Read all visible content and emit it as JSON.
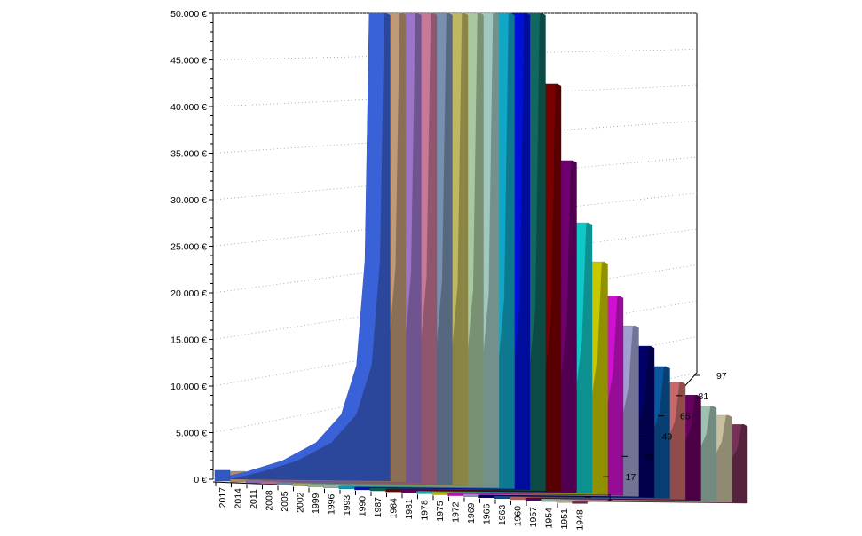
{
  "chart_data": {
    "type": "area",
    "title": "",
    "xlabel": "",
    "ylabel": "",
    "zlabel": "",
    "ylim": [
      0,
      50000
    ],
    "y_ticks": [
      "0 €",
      "5.000 €",
      "10.000 €",
      "15.000 €",
      "20.000 €",
      "25.000 €",
      "30.000 €",
      "35.000 €",
      "40.000 €",
      "45.000 €",
      "50.000 €"
    ],
    "depth_ticks": [
      "1",
      "17",
      "33",
      "49",
      "65",
      "81",
      "97"
    ],
    "x_ticks": [
      "2017",
      "2014",
      "2011",
      "2008",
      "2005",
      "2002",
      "1999",
      "1996",
      "1993",
      "1990",
      "1987",
      "1984",
      "1981",
      "1978",
      "1975",
      "1972",
      "1969",
      "1966",
      "1963",
      "1960",
      "1957",
      "1954",
      "1951",
      "1948"
    ],
    "grid": true,
    "legend": "none",
    "series": [
      {
        "start": "2017",
        "color": "#3a62d8",
        "values": [
          0,
          500,
          1500,
          3200,
          6000,
          11000,
          22000,
          50000,
          50000
        ]
      },
      {
        "start": "2014",
        "color": "#c09a78",
        "values": [
          0,
          480,
          1450,
          3100,
          5800,
          10800,
          21500,
          50000,
          50000
        ]
      },
      {
        "start": "2011",
        "color": "#9c74c8",
        "values": [
          0,
          470,
          1420,
          3050,
          5700,
          10600,
          21000,
          50000,
          50000
        ]
      },
      {
        "start": "2008",
        "color": "#c87898",
        "values": [
          0,
          460,
          1400,
          3000,
          5600,
          10400,
          20800,
          50000,
          50000
        ]
      },
      {
        "start": "2005",
        "color": "#7890b0",
        "values": [
          0,
          450,
          1380,
          2950,
          5500,
          10200,
          20500,
          50000,
          50000
        ]
      },
      {
        "start": "2002",
        "color": "#c0b860",
        "values": [
          0,
          440,
          1350,
          2900,
          5400,
          10000,
          20200,
          50000,
          50000
        ]
      },
      {
        "start": "1999",
        "color": "#a8c8a0",
        "values": [
          0,
          430,
          1320,
          2850,
          5300,
          9800,
          19900,
          50000,
          50000
        ]
      },
      {
        "start": "1996",
        "color": "#a0c8c0",
        "values": [
          0,
          420,
          1300,
          2800,
          5200,
          9600,
          19600,
          50000,
          50000
        ]
      },
      {
        "start": "1993",
        "color": "#10a8c8",
        "values": [
          0,
          410,
          1280,
          2750,
          5100,
          9400,
          19300,
          50000,
          50000
        ]
      },
      {
        "start": "1990",
        "color": "#0010d8",
        "values": [
          0,
          400,
          1250,
          2700,
          5000,
          9200,
          19000,
          50000,
          50000
        ]
      },
      {
        "start": "1987",
        "color": "#106860",
        "values": [
          0,
          390,
          1220,
          2650,
          4900,
          9000,
          18700,
          50000,
          50000
        ]
      },
      {
        "start": "1984",
        "color": "#7a0000",
        "values": [
          0,
          380,
          1200,
          2600,
          4800,
          8800,
          18000,
          42500,
          42500
        ]
      },
      {
        "start": "1981",
        "color": "#700070",
        "values": [
          0,
          370,
          1170,
          2500,
          4600,
          8400,
          17000,
          34500,
          34500
        ]
      },
      {
        "start": "1978",
        "color": "#10c8c8",
        "values": [
          0,
          360,
          1140,
          2400,
          4400,
          8000,
          15500,
          28000,
          28000
        ]
      },
      {
        "start": "1975",
        "color": "#c8c800",
        "values": [
          0,
          350,
          1100,
          2300,
          4200,
          7600,
          14000,
          24000,
          24000
        ]
      },
      {
        "start": "1972",
        "color": "#d010d0",
        "values": [
          0,
          340,
          1060,
          2200,
          4000,
          7200,
          12500,
          20500,
          20500
        ]
      },
      {
        "start": "1969",
        "color": "#a0a0d0",
        "values": [
          0,
          330,
          1020,
          2100,
          3800,
          6800,
          11000,
          17500,
          17500
        ]
      },
      {
        "start": "1966",
        "color": "#000068",
        "values": [
          0,
          320,
          980,
          2000,
          3600,
          6400,
          9800,
          15500,
          15500
        ]
      },
      {
        "start": "1963",
        "color": "#0a58a0",
        "values": [
          0,
          310,
          940,
          1900,
          3400,
          6000,
          8800,
          13500,
          13500
        ]
      },
      {
        "start": "1960",
        "color": "#c86868",
        "values": [
          0,
          300,
          900,
          1800,
          3200,
          5600,
          8000,
          12000,
          12000
        ]
      },
      {
        "start": "1957",
        "color": "#680060",
        "values": [
          0,
          290,
          860,
          1700,
          3000,
          5200,
          7400,
          10800,
          10800
        ]
      },
      {
        "start": "1954",
        "color": "#a0c0b0",
        "values": [
          0,
          280,
          820,
          1600,
          2800,
          4800,
          6800,
          9800,
          9800
        ]
      },
      {
        "start": "1951",
        "color": "#c8c0a0",
        "values": [
          0,
          270,
          780,
          1500,
          2600,
          4400,
          6200,
          9000,
          9000
        ]
      },
      {
        "start": "1948",
        "color": "#783058",
        "values": [
          0,
          260,
          740,
          1400,
          2400,
          4000,
          5600,
          8200,
          8200
        ]
      }
    ]
  }
}
